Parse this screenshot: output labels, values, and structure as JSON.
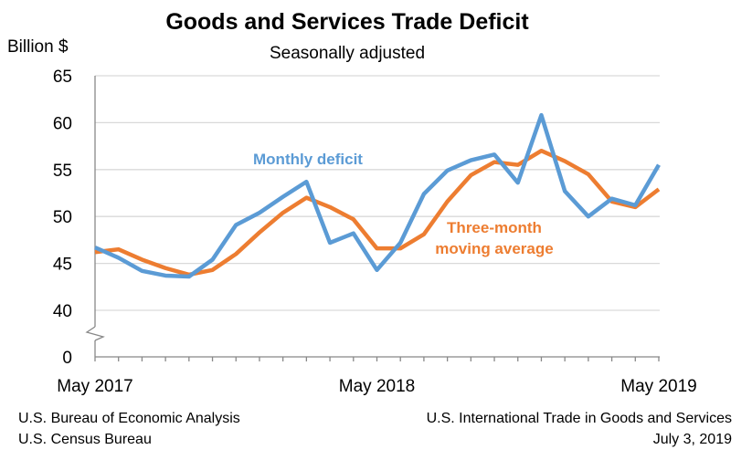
{
  "chart_data": {
    "type": "line",
    "title": "Goods and Services Trade Deficit",
    "subtitle": "Seasonally adjusted",
    "ylabel": "Billion $",
    "xlabel": "",
    "x": [
      "May 2017",
      "Jun 2017",
      "Jul 2017",
      "Aug 2017",
      "Sep 2017",
      "Oct 2017",
      "Nov 2017",
      "Dec 2017",
      "Jan 2018",
      "Feb 2018",
      "Mar 2018",
      "Apr 2018",
      "May 2018",
      "Jun 2018",
      "Jul 2018",
      "Aug 2018",
      "Sep 2018",
      "Oct 2018",
      "Nov 2018",
      "Dec 2018",
      "Jan 2019",
      "Feb 2019",
      "Mar 2019",
      "Apr 2019",
      "May 2019"
    ],
    "x_tick_labels": [
      "May 2017",
      "May 2018",
      "May 2019"
    ],
    "y_ticks": [
      0,
      40,
      45,
      50,
      55,
      60,
      65
    ],
    "ylim": [
      0,
      65
    ],
    "axis_break": [
      0,
      40
    ],
    "grid": true,
    "series": [
      {
        "name": "Monthly deficit",
        "color": "#5b9bd5",
        "values": [
          46.7,
          45.6,
          44.2,
          43.7,
          43.6,
          45.4,
          49.1,
          50.4,
          52.1,
          53.7,
          47.2,
          48.2,
          44.3,
          47.2,
          52.4,
          54.9,
          56.0,
          56.6,
          53.6,
          60.8,
          52.7,
          50.0,
          51.9,
          51.2,
          55.5
        ]
      },
      {
        "name": "Three-month moving average",
        "label_lines": [
          "Three-month",
          "moving average"
        ],
        "color": "#ed7d31",
        "values": [
          46.2,
          46.5,
          45.4,
          44.5,
          43.8,
          44.3,
          46.0,
          48.3,
          50.4,
          52.0,
          51.0,
          49.7,
          46.6,
          46.6,
          48.1,
          51.6,
          54.4,
          55.8,
          55.5,
          57.0,
          55.9,
          54.5,
          51.6,
          51.0,
          52.9
        ]
      }
    ]
  },
  "footer": {
    "left": [
      "U.S. Bureau of Economic Analysis",
      "U.S. Census Bureau"
    ],
    "right": [
      "U.S. International Trade in Goods and Services",
      "July 3, 2019"
    ]
  }
}
